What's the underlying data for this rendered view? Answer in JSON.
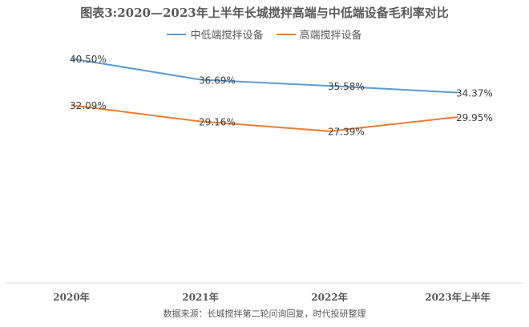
{
  "chart_data": {
    "type": "line",
    "title": "图表3:2020—2023年上半年长城搅拌高端与中低端设备毛利率对比",
    "categories": [
      "2020年",
      "2021年",
      "2022年",
      "2023年上半年"
    ],
    "series": [
      {
        "name": "中低端搅拌设备",
        "color": "#5B9BD5",
        "values": [
          40.5,
          36.69,
          35.58,
          34.37
        ],
        "labels": [
          "40.50%",
          "36.69%",
          "35.58%",
          "34.37%"
        ]
      },
      {
        "name": "高端搅拌设备",
        "color": "#ED7D31",
        "values": [
          32.09,
          29.16,
          27.39,
          29.95
        ],
        "labels": [
          "32.09%",
          "29.16%",
          "27.39%",
          "29.95%"
        ]
      }
    ],
    "ylim": [
      0,
      45
    ],
    "grid": false,
    "legend": "top-center"
  },
  "source": "数据来源：长城搅拌第二轮问询回复，时代投研整理"
}
